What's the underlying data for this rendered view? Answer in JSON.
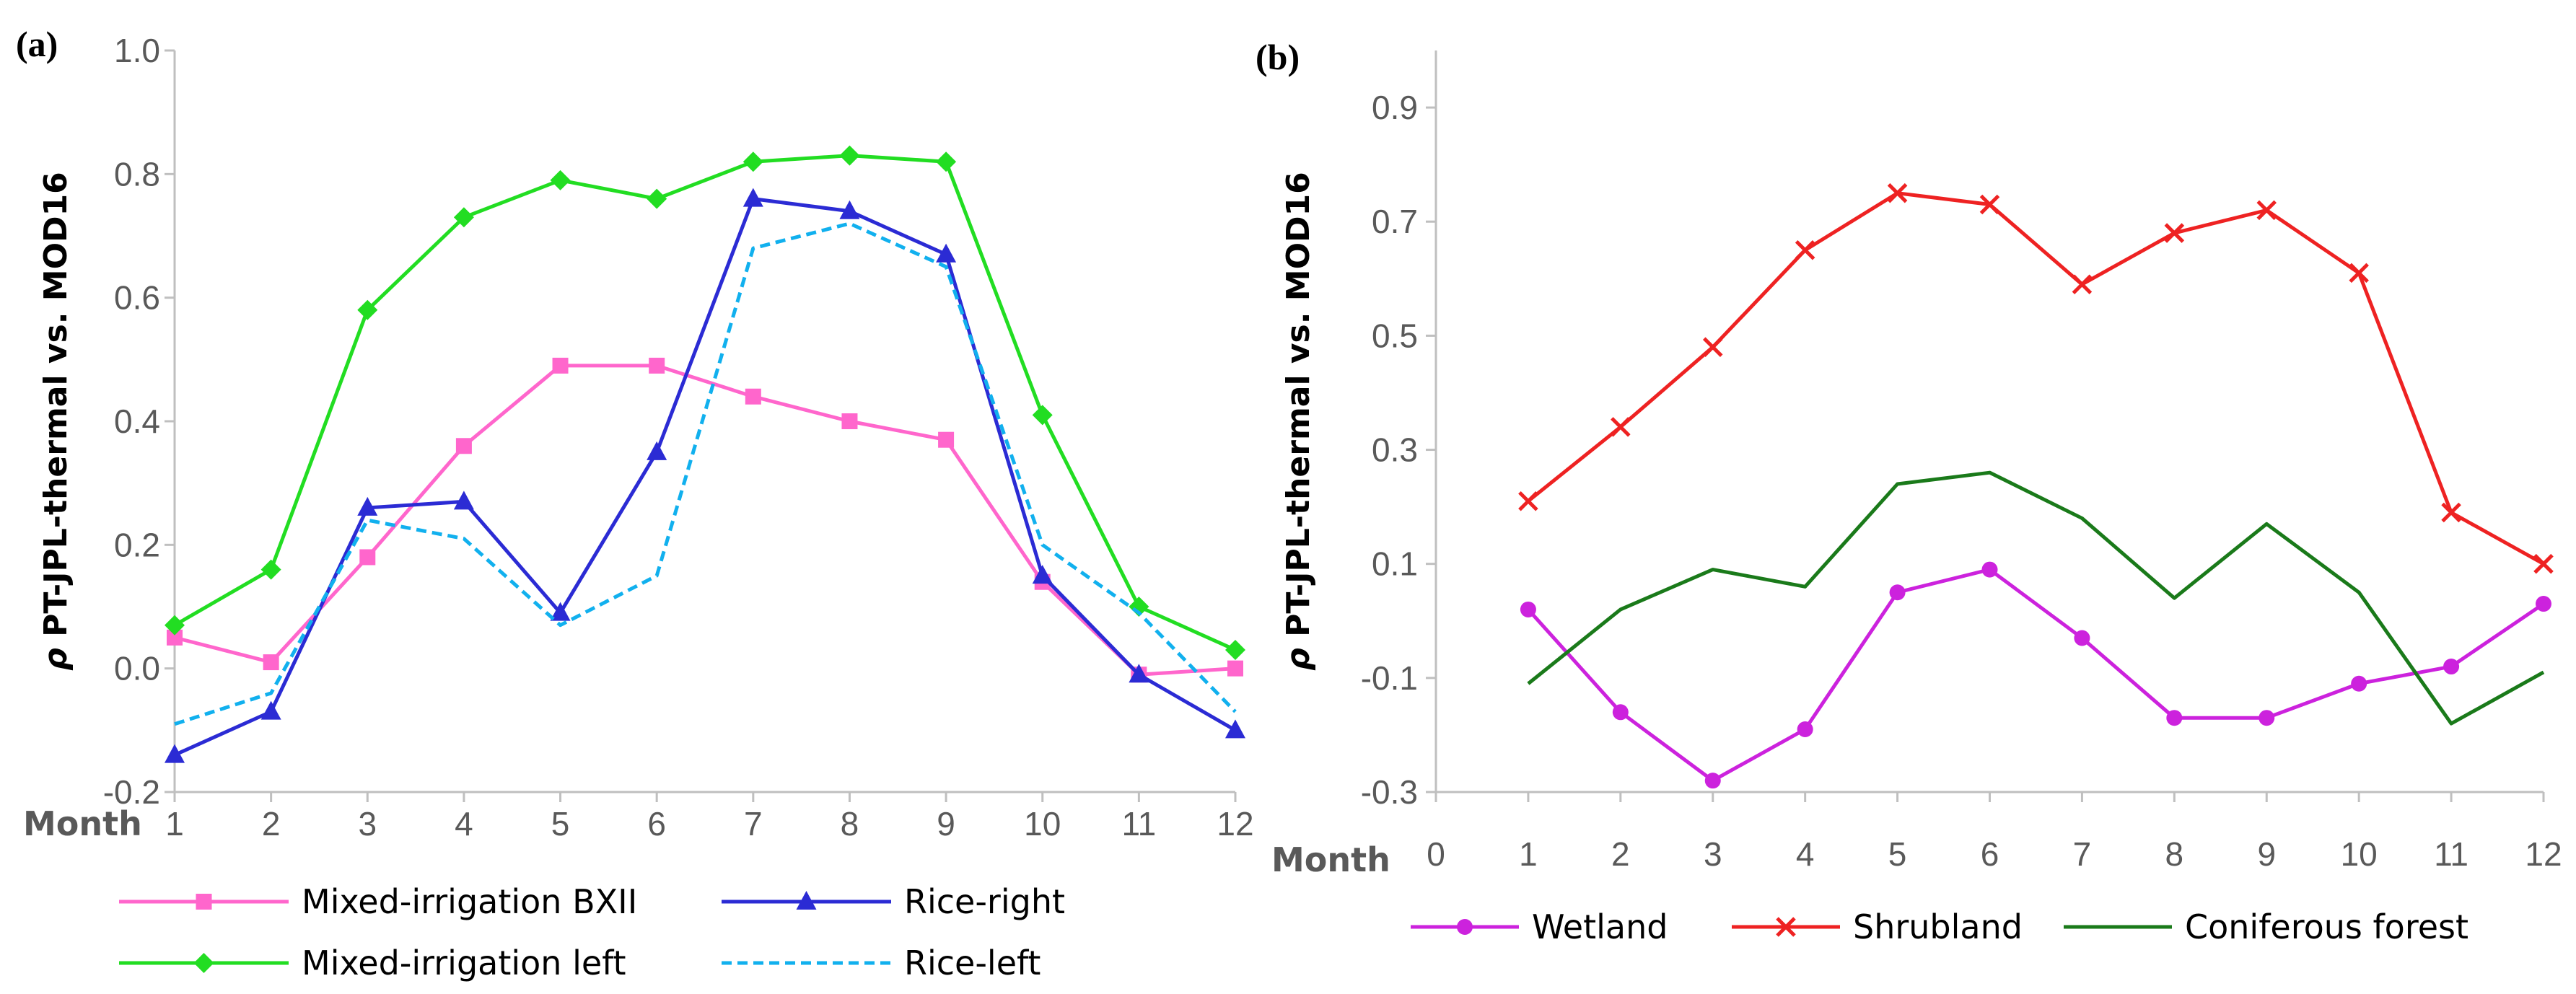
{
  "chart_data": [
    {
      "panel_label": "(a)",
      "type": "line",
      "ylabel_prefix": "ρ",
      "ylabel": " PT-JPL-thermal vs. MOD16",
      "xlabel": "Month",
      "ylim": [
        -0.2,
        1.0
      ],
      "xlim": [
        1,
        12
      ],
      "yticks": [
        "-0.2",
        "0.0",
        "0.2",
        "0.4",
        "0.6",
        "0.8",
        "1.0"
      ],
      "xticks": [
        "1",
        "2",
        "3",
        "4",
        "5",
        "6",
        "7",
        "8",
        "9",
        "10",
        "11",
        "12"
      ],
      "grid": false,
      "legend_position": "bottom",
      "series": [
        {
          "name": "Mixed-irrigation BXII",
          "color": "#ff66cc",
          "marker": "square",
          "dash": "solid",
          "x": [
            1,
            2,
            3,
            4,
            5,
            6,
            7,
            8,
            9,
            10,
            11,
            12
          ],
          "values": [
            0.05,
            0.01,
            0.18,
            0.36,
            0.49,
            0.49,
            0.44,
            0.4,
            0.37,
            0.14,
            -0.01,
            0.0
          ]
        },
        {
          "name": "Rice-right",
          "color": "#2b2bd4",
          "marker": "triangle",
          "dash": "solid",
          "x": [
            1,
            2,
            3,
            4,
            5,
            6,
            7,
            8,
            9,
            10,
            11,
            12
          ],
          "values": [
            -0.14,
            -0.07,
            0.26,
            0.27,
            0.09,
            0.35,
            0.76,
            0.74,
            0.67,
            0.15,
            -0.01,
            -0.1
          ]
        },
        {
          "name": "Mixed-irrigation left",
          "color": "#22dd22",
          "marker": "diamond",
          "dash": "solid",
          "x": [
            1,
            2,
            3,
            4,
            5,
            6,
            7,
            8,
            9,
            10,
            11,
            12
          ],
          "values": [
            0.07,
            0.16,
            0.58,
            0.73,
            0.79,
            0.76,
            0.82,
            0.83,
            0.82,
            0.41,
            0.1,
            0.03
          ]
        },
        {
          "name": "Rice-left",
          "color": "#11b0ee",
          "marker": "none",
          "dash": "dashed",
          "x": [
            1,
            2,
            3,
            4,
            5,
            6,
            7,
            8,
            9,
            10,
            11,
            12
          ],
          "values": [
            -0.09,
            -0.04,
            0.24,
            0.21,
            0.07,
            0.15,
            0.68,
            0.72,
            0.65,
            0.2,
            0.09,
            -0.07
          ]
        }
      ]
    },
    {
      "panel_label": "(b)",
      "type": "line",
      "ylabel_prefix": "ρ",
      "ylabel": " PT-JPL-thermal vs. MOD16",
      "xlabel": "Month",
      "ylim": [
        -0.3,
        1.0
      ],
      "xlim": [
        0,
        12
      ],
      "yticks": [
        "-0.3",
        "-0.1",
        "0.1",
        "0.3",
        "0.5",
        "0.7",
        "0.9"
      ],
      "xticks": [
        "0",
        "1",
        "2",
        "3",
        "4",
        "5",
        "6",
        "7",
        "8",
        "9",
        "10",
        "11",
        "12"
      ],
      "grid": false,
      "legend_position": "bottom",
      "series": [
        {
          "name": "Wetland",
          "color": "#cc22dd",
          "marker": "circle",
          "dash": "solid",
          "x": [
            1,
            2,
            3,
            4,
            5,
            6,
            7,
            8,
            9,
            10,
            11,
            12
          ],
          "values": [
            0.02,
            -0.16,
            -0.28,
            -0.19,
            0.05,
            0.09,
            -0.03,
            -0.17,
            -0.17,
            -0.11,
            -0.08,
            0.03
          ]
        },
        {
          "name": "Shrubland",
          "color": "#ee2222",
          "marker": "x",
          "dash": "solid",
          "x": [
            1,
            2,
            3,
            4,
            5,
            6,
            7,
            8,
            9,
            10,
            11,
            12
          ],
          "values": [
            0.21,
            0.34,
            0.48,
            0.65,
            0.75,
            0.73,
            0.59,
            0.68,
            0.72,
            0.61,
            0.19,
            0.1
          ]
        },
        {
          "name": "Coniferous forest",
          "color": "#1a7a1a",
          "marker": "none",
          "dash": "solid",
          "x": [
            1,
            2,
            3,
            4,
            5,
            6,
            7,
            8,
            9,
            10,
            11,
            12
          ],
          "values": [
            -0.11,
            0.02,
            0.09,
            0.06,
            0.24,
            0.26,
            0.18,
            0.04,
            0.17,
            0.05,
            -0.18,
            -0.09
          ]
        }
      ]
    }
  ]
}
